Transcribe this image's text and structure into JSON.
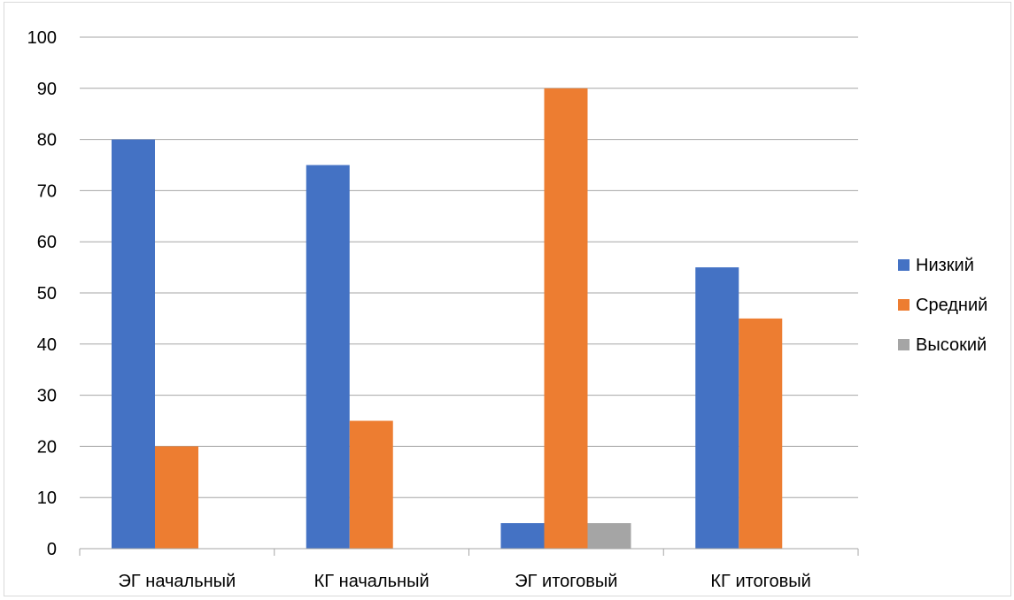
{
  "chart_data": {
    "type": "bar",
    "categories": [
      "ЭГ начальный",
      "КГ начальный",
      "ЭГ итоговый",
      "КГ итоговый"
    ],
    "series": [
      {
        "name": "Низкий",
        "values": [
          80,
          75,
          5,
          55
        ],
        "color": "#4472c4"
      },
      {
        "name": "Средний",
        "values": [
          20,
          25,
          90,
          45
        ],
        "color": "#ed7d31"
      },
      {
        "name": "Высокий",
        "values": [
          0,
          0,
          5,
          0
        ],
        "color": "#a5a5a5"
      }
    ],
    "ylim": [
      0,
      100
    ],
    "yticks": [
      0,
      10,
      20,
      30,
      40,
      50,
      60,
      70,
      80,
      90,
      100
    ],
    "grid": true,
    "legend_position": "right",
    "gridline_color": "#a6a6a6",
    "axis_color": "#a6a6a6"
  }
}
